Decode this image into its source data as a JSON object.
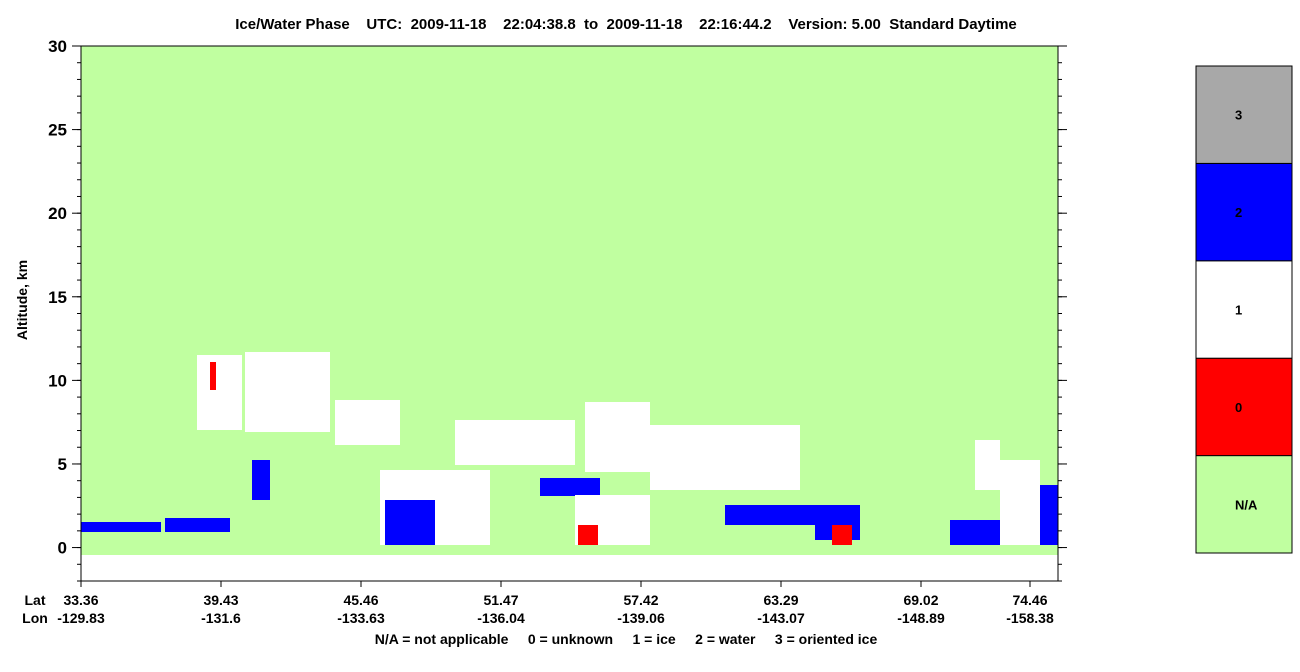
{
  "chart_data": {
    "type": "heatmap",
    "title": "Ice/Water Phase    UTC:  2009-11-18    22:04:38.8  to  2009-11-18    22:16:44.2    Version: 5.00  Standard Daytime",
    "ylabel": "Altitude, km",
    "ylim": [
      -2,
      30
    ],
    "yticks": [
      0,
      5,
      10,
      15,
      20,
      25,
      30
    ],
    "row_labels": [
      "Lat",
      "Lon"
    ],
    "lat": [
      33.36,
      39.43,
      45.46,
      51.47,
      57.42,
      63.29,
      69.02,
      74.46
    ],
    "lon": [
      -129.83,
      -131.6,
      -133.63,
      -136.04,
      -139.06,
      -143.07,
      -148.89,
      -158.38
    ],
    "colorbar": {
      "categories": [
        "N/A",
        "0",
        "1",
        "2",
        "3"
      ],
      "colors": [
        "#c0ffa0",
        "#ff0000",
        "#ffffff",
        "#0000ff",
        "#a8a8a8"
      ]
    },
    "footnote": "N/A = not applicable     0 = unknown     1 = ice     2 = water     3 = oriented ice"
  }
}
